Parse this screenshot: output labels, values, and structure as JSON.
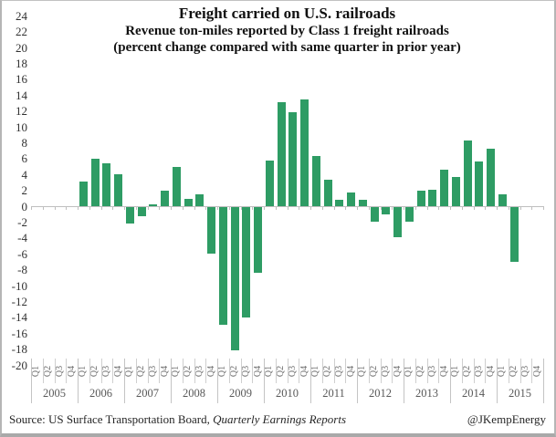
{
  "header": {
    "title": "Freight carried on U.S. railroads",
    "subtitle1": "Revenue ton-miles reported by Class 1 freight railroads",
    "subtitle2": "(percent change compared with same quarter in prior year)"
  },
  "footer": {
    "source_prefix": "Source: US Surface Transportation Board, ",
    "source_italic": "Quarterly Earnings Reports",
    "credit": "@JKempEnergy"
  },
  "chart_data": {
    "type": "bar",
    "title": "Freight carried on U.S. railroads",
    "xlabel": "",
    "ylabel": "percent change vs same quarter prior year",
    "ylim": [
      -20,
      24
    ],
    "ytick_step": 2,
    "grid": false,
    "legend": "none",
    "bar_color": "#2e9c64",
    "axis_color": "#bfbfbf",
    "x_years": [
      2005,
      2006,
      2007,
      2008,
      2009,
      2010,
      2011,
      2012,
      2013,
      2014,
      2015
    ],
    "quarter_labels": [
      "Q1",
      "Q2",
      "Q3",
      "Q4"
    ],
    "points": [
      {
        "period": "2006 Q1",
        "value": 3.1
      },
      {
        "period": "2006 Q2",
        "value": 6.0
      },
      {
        "period": "2006 Q3",
        "value": 5.4
      },
      {
        "period": "2006 Q4",
        "value": 4.0
      },
      {
        "period": "2007 Q1",
        "value": -2.1
      },
      {
        "period": "2007 Q2",
        "value": -1.1
      },
      {
        "period": "2007 Q3",
        "value": 0.2
      },
      {
        "period": "2007 Q4",
        "value": 1.9
      },
      {
        "period": "2008 Q1",
        "value": 4.9
      },
      {
        "period": "2008 Q2",
        "value": 0.9
      },
      {
        "period": "2008 Q3",
        "value": 1.5
      },
      {
        "period": "2008 Q4",
        "value": -5.9
      },
      {
        "period": "2009 Q1",
        "value": -14.8
      },
      {
        "period": "2009 Q2",
        "value": -18.1
      },
      {
        "period": "2009 Q3",
        "value": -13.9
      },
      {
        "period": "2009 Q4",
        "value": -8.3
      },
      {
        "period": "2010 Q1",
        "value": 5.7
      },
      {
        "period": "2010 Q2",
        "value": 13.1
      },
      {
        "period": "2010 Q3",
        "value": 11.8
      },
      {
        "period": "2010 Q4",
        "value": 13.5
      },
      {
        "period": "2011 Q1",
        "value": 6.3
      },
      {
        "period": "2011 Q2",
        "value": 3.3
      },
      {
        "period": "2011 Q3",
        "value": 0.8
      },
      {
        "period": "2011 Q4",
        "value": 1.7
      },
      {
        "period": "2012 Q1",
        "value": 0.8
      },
      {
        "period": "2012 Q2",
        "value": -1.8
      },
      {
        "period": "2012 Q3",
        "value": -0.9
      },
      {
        "period": "2012 Q4",
        "value": -3.8
      },
      {
        "period": "2013 Q1",
        "value": -1.8
      },
      {
        "period": "2013 Q2",
        "value": 1.9
      },
      {
        "period": "2013 Q3",
        "value": 2.1
      },
      {
        "period": "2013 Q4",
        "value": 4.6
      },
      {
        "period": "2014 Q1",
        "value": 3.7
      },
      {
        "period": "2014 Q2",
        "value": 8.3
      },
      {
        "period": "2014 Q3",
        "value": 5.6
      },
      {
        "period": "2014 Q4",
        "value": 7.2
      },
      {
        "period": "2015 Q1",
        "value": 1.5
      },
      {
        "period": "2015 Q2",
        "value": -6.9
      }
    ]
  }
}
